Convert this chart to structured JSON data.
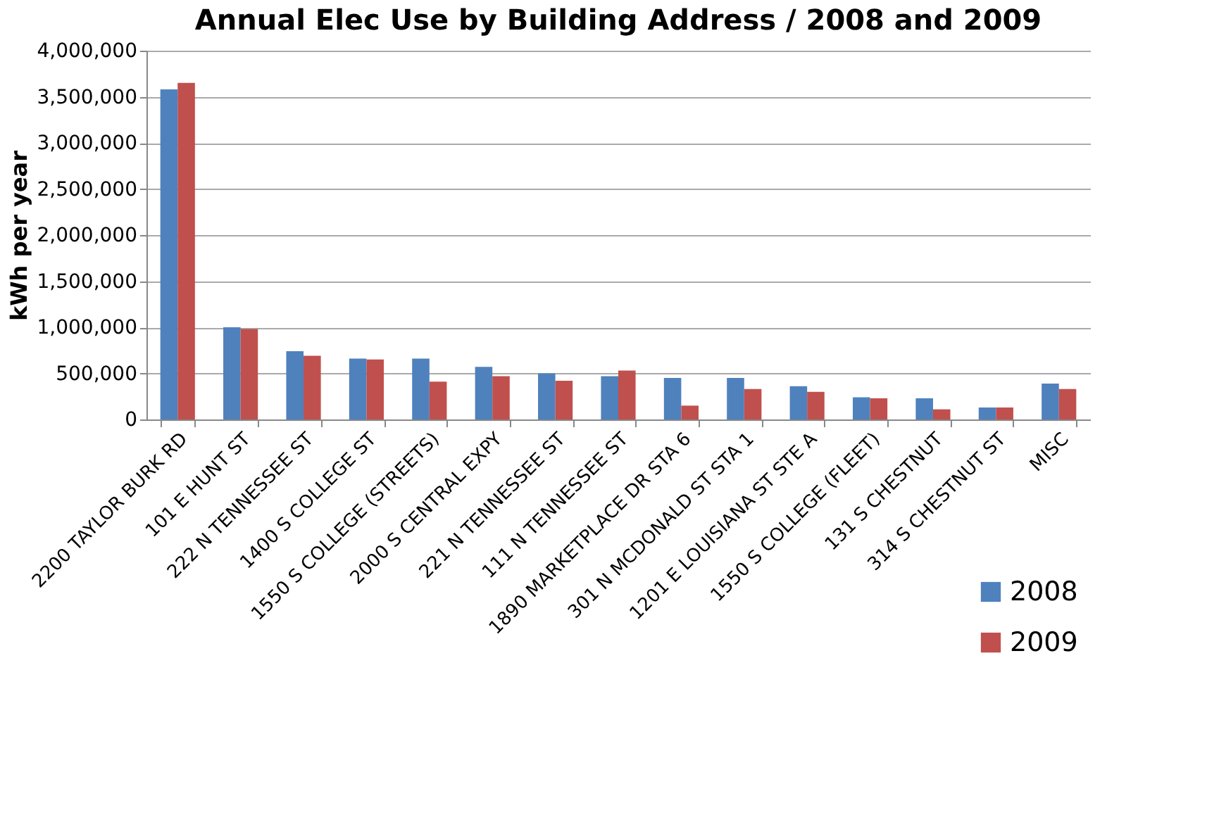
{
  "chart_data": {
    "type": "bar",
    "title": "Annual Elec Use by Building Address / 2008 and 2009",
    "ylabel": "kWh per year",
    "categories": [
      "2200 TAYLOR BURK RD",
      "101 E HUNT ST",
      "222 N TENNESSEE ST",
      "1400 S COLLEGE ST",
      "1550 S COLLEGE (STREETS)",
      "2000 S CENTRAL EXPY",
      "221 N TENNESSEE ST",
      "111 N TENNESSEE ST",
      "1890 MARKETPLACE DR STA 6",
      "301 N MCDONALD ST   STA 1",
      "1201 E LOUISIANA ST STE A",
      "1550 S COLLEGE (FLEET)",
      "131 S CHESTNUT",
      "314 S CHESTNUT ST",
      "MISC"
    ],
    "series": [
      {
        "name": "2008",
        "color": "#4f81bd",
        "values": [
          3580000,
          1000000,
          740000,
          660000,
          660000,
          570000,
          500000,
          470000,
          450000,
          450000,
          360000,
          240000,
          230000,
          130000,
          390000
        ]
      },
      {
        "name": "2009",
        "color": "#c0504d",
        "values": [
          3650000,
          980000,
          690000,
          650000,
          410000,
          470000,
          420000,
          530000,
          150000,
          330000,
          300000,
          230000,
          110000,
          130000,
          330000
        ]
      }
    ],
    "ylim": [
      0,
      4000000
    ],
    "yticks": [
      0,
      {
        "value": 500000,
        "label": "500,000"
      },
      {
        "value": 1000000,
        "label": "1,000,000"
      },
      {
        "value": 1500000,
        "label": "1,500,000"
      },
      {
        "value": 2000000,
        "label": "2,000,000"
      },
      {
        "value": 2500000,
        "label": "2,500,000"
      },
      {
        "value": 3000000,
        "label": "3,000,000"
      },
      {
        "value": 3500000,
        "label": "3,500,000"
      },
      {
        "value": 4000000,
        "label": "4,000,000"
      }
    ],
    "grid": "y",
    "legend": "bottom right"
  }
}
